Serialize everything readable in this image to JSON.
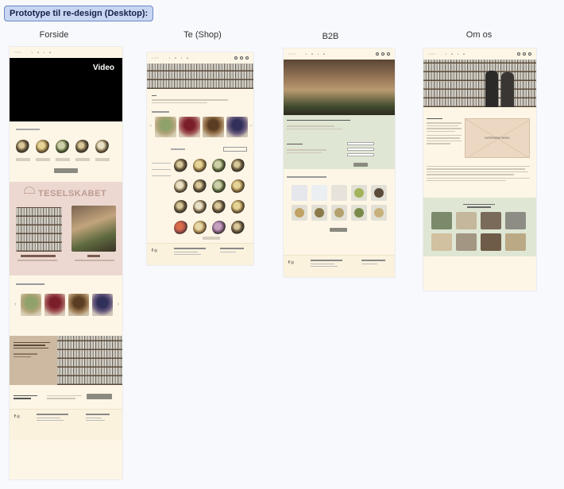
{
  "header": {
    "label": "Prototype til re-design (Desktop):"
  },
  "frames": [
    {
      "title": "Forside"
    },
    {
      "title": "Te (Shop)"
    },
    {
      "title": "B2B"
    },
    {
      "title": "Om os"
    }
  ],
  "forside": {
    "video_label": "Video",
    "brand_title": "TESELSKABET"
  },
  "om_os": {
    "video_placeholder": "INTERVIEW VIDEO"
  },
  "colors": {
    "page_bg": "#f7f9fd",
    "frame_bg": "#fdf6e6",
    "pink_band": "#ecd8d1",
    "green_band": "#dfe6d4",
    "brown_band": "#cdb9a1",
    "button_gray": "#8a8a80"
  }
}
